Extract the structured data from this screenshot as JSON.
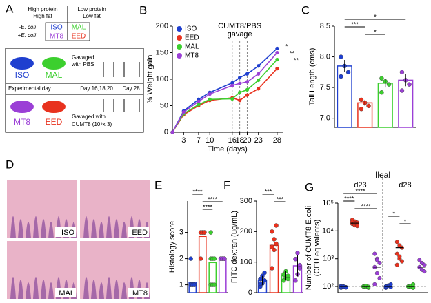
{
  "diagram": {
    "label": "A",
    "header": {
      "high": [
        "High protein",
        "High fat"
      ],
      "low": [
        "Low protein",
        "Low fat"
      ]
    },
    "rows": [
      {
        "label": "-E. coli",
        "cells": [
          "ISO",
          "MAL"
        ]
      },
      {
        "label": "+E. coli",
        "cells": [
          "MT8",
          "EED"
        ]
      }
    ],
    "mice": [
      "ISO",
      "MAL",
      "MT8",
      "EED"
    ],
    "top_text": [
      "Gavaged",
      "with PBS"
    ],
    "timeline": [
      "Experimental day",
      "Day 16,18,20",
      "Day 28"
    ],
    "bottom_text": [
      "Gavaged with",
      "CUMT8 (10⁹x 3)"
    ]
  },
  "histology": {
    "label": "D",
    "images": [
      "ISO",
      "EED",
      "MAL",
      "MT8"
    ]
  },
  "chart_data": [
    {
      "type": "line",
      "label": "B",
      "ylabel": "% Weight gain",
      "xlabel": "Time (days)",
      "x": [
        0,
        3,
        7,
        10,
        16,
        18,
        20,
        23,
        28
      ],
      "xlim": [
        0,
        29.5
      ],
      "xticks": [
        3,
        7,
        10,
        16,
        18,
        20,
        23,
        28
      ],
      "ylim": [
        0,
        200
      ],
      "yticks": [
        0,
        50,
        100,
        150,
        200
      ],
      "legend": "upper left",
      "vlines": [
        16,
        18,
        20
      ],
      "annotation": [
        "CUMT8/PBS",
        "gavage"
      ],
      "significance": [
        "*",
        "**",
        "**"
      ],
      "series": [
        {
          "name": "ISO",
          "color": "#1f3fcf",
          "values": [
            0,
            40,
            62,
            75,
            93,
            103,
            110,
            125,
            158
          ]
        },
        {
          "name": "EED",
          "color": "#e8321e",
          "values": [
            0,
            33,
            50,
            60,
            65,
            60,
            70,
            82,
            120
          ]
        },
        {
          "name": "MAL",
          "color": "#3ccf2e",
          "values": [
            0,
            35,
            52,
            62,
            63,
            75,
            80,
            98,
            137
          ]
        },
        {
          "name": "MT8",
          "color": "#9b3fd6",
          "values": [
            0,
            38,
            58,
            72,
            88,
            92,
            95,
            110,
            150
          ]
        }
      ]
    },
    {
      "type": "bar",
      "label": "C",
      "ylabel": "Tail Length (cms)",
      "ylim": [
        6.85,
        8.5
      ],
      "yticks": [
        {
          "value": 7,
          "label": "7.0"
        },
        {
          "value": 7.5,
          "label": "7.5"
        },
        {
          "value": 8,
          "label": "8.0"
        },
        {
          "value": 8.5,
          "label": "8.5"
        }
      ],
      "colors": [
        "#1f3fcf",
        "#e8321e",
        "#3ccf2e",
        "#9b3fd6"
      ],
      "values": [
        7.85,
        7.25,
        7.57,
        7.62
      ],
      "errors": [
        0.1,
        0.05,
        0.07,
        0.1
      ],
      "points": [
        [
          8.0,
          7.85,
          7.75,
          7.68
        ],
        [
          7.3,
          7.25,
          7.2,
          7.15
        ],
        [
          7.65,
          7.6,
          7.55,
          7.42
        ],
        [
          7.75,
          7.62,
          7.55,
          7.45
        ]
      ],
      "brackets": [
        {
          "from": 0,
          "to": 3,
          "label": "*"
        },
        {
          "from": 0,
          "to": 1,
          "label": "***"
        },
        {
          "from": 1,
          "to": 2,
          "label": "*"
        }
      ]
    },
    {
      "type": "bar",
      "label": "E",
      "ylabel": "Histology score",
      "ylim": [
        0.7,
        4.2
      ],
      "yticks": [
        1,
        2,
        3
      ],
      "colors": [
        "#1f3fcf",
        "#e8321e",
        "#3ccf2e",
        "#9b3fd6"
      ],
      "values": [
        1.1,
        2.85,
        1.85,
        2.0
      ],
      "points": [
        [
          1,
          1,
          1,
          1,
          1,
          1,
          2
        ],
        [
          3,
          3,
          3,
          3,
          3,
          3,
          2
        ],
        [
          2,
          2,
          2,
          1,
          1,
          1,
          3
        ],
        [
          2,
          2,
          2,
          2,
          2,
          2
        ]
      ],
      "brackets": [
        {
          "from": 0,
          "to": 1,
          "label": "****"
        },
        {
          "from": 1,
          "to": 3,
          "label": "****"
        },
        {
          "from": 1,
          "to": 2,
          "label": "****"
        }
      ]
    },
    {
      "type": "bar",
      "label": "F",
      "ylabel": "FITC dextran (ug/mL)",
      "ylim": [
        0,
        300
      ],
      "yticks": [
        0,
        100,
        200,
        300
      ],
      "colors": [
        "#1f3fcf",
        "#e8321e",
        "#3ccf2e",
        "#9b3fd6"
      ],
      "values": [
        40,
        155,
        55,
        88
      ],
      "errors": [
        15,
        55,
        15,
        35
      ],
      "points": [
        [
          20,
          30,
          40,
          45,
          55,
          65,
          30
        ],
        [
          80,
          140,
          160,
          150,
          175,
          220,
          200
        ],
        [
          40,
          50,
          55,
          60,
          70,
          45
        ],
        [
          40,
          60,
          90,
          110,
          130,
          80
        ]
      ],
      "brackets": [
        {
          "from": 0,
          "to": 1,
          "label": "***"
        },
        {
          "from": 1,
          "to": 2,
          "label": "***"
        }
      ]
    },
    {
      "type": "scatter",
      "label": "G",
      "title": "Ileal",
      "ylabel": [
        "Number of CUMT8 E.coli",
        "(CFU eqivalents)"
      ],
      "log_scale": true,
      "ylim": [
        60,
        100000
      ],
      "yticks": [
        {
          "value": 100,
          "label": "10²"
        },
        {
          "value": 1000,
          "label": "10³"
        },
        {
          "value": 10000,
          "label": "10⁴"
        },
        {
          "value": 100000,
          "label": "10⁵"
        }
      ],
      "hline": 100,
      "group_labels": [
        "d23",
        "d28"
      ],
      "series": [
        {
          "color": "#1f3fcf",
          "mean": 100,
          "values": [
            90,
            100,
            95,
            105,
            100,
            92,
            98,
            100
          ]
        },
        {
          "color": "#e8321e",
          "mean": 19000,
          "values": [
            25000,
            22000,
            20000,
            18000,
            16000,
            15000,
            21000,
            19000
          ]
        },
        {
          "color": "#3ccf2e",
          "mean": 100,
          "values": [
            100,
            95,
            90,
            100,
            105,
            98
          ]
        },
        {
          "color": "#9b3fd6",
          "mean": 500,
          "values": [
            1500,
            1000,
            700,
            500,
            300,
            200,
            120,
            900
          ]
        },
        {
          "color": "#1f3fcf",
          "mean": 100,
          "values": [
            100,
            110,
            95,
            90,
            105,
            120,
            100
          ]
        },
        {
          "color": "#e8321e",
          "mean": 2500,
          "values": [
            4000,
            3000,
            2500,
            1500,
            1000,
            800,
            600,
            1200
          ]
        },
        {
          "color": "#3ccf2e",
          "mean": 100,
          "values": [
            100,
            95,
            90,
            100,
            105,
            120
          ]
        },
        {
          "color": "#9b3fd6",
          "mean": 500,
          "values": [
            900,
            700,
            600,
            500,
            400,
            350
          ]
        }
      ],
      "brackets": [
        {
          "from": 0,
          "to": 3,
          "label": "****"
        },
        {
          "from": 0,
          "to": 1,
          "label": "****"
        },
        {
          "from": 1,
          "to": 3,
          "label": "****"
        },
        {
          "from": 4,
          "to": 5,
          "label": "*"
        },
        {
          "from": 5,
          "to": 6,
          "label": "*"
        }
      ]
    }
  ]
}
